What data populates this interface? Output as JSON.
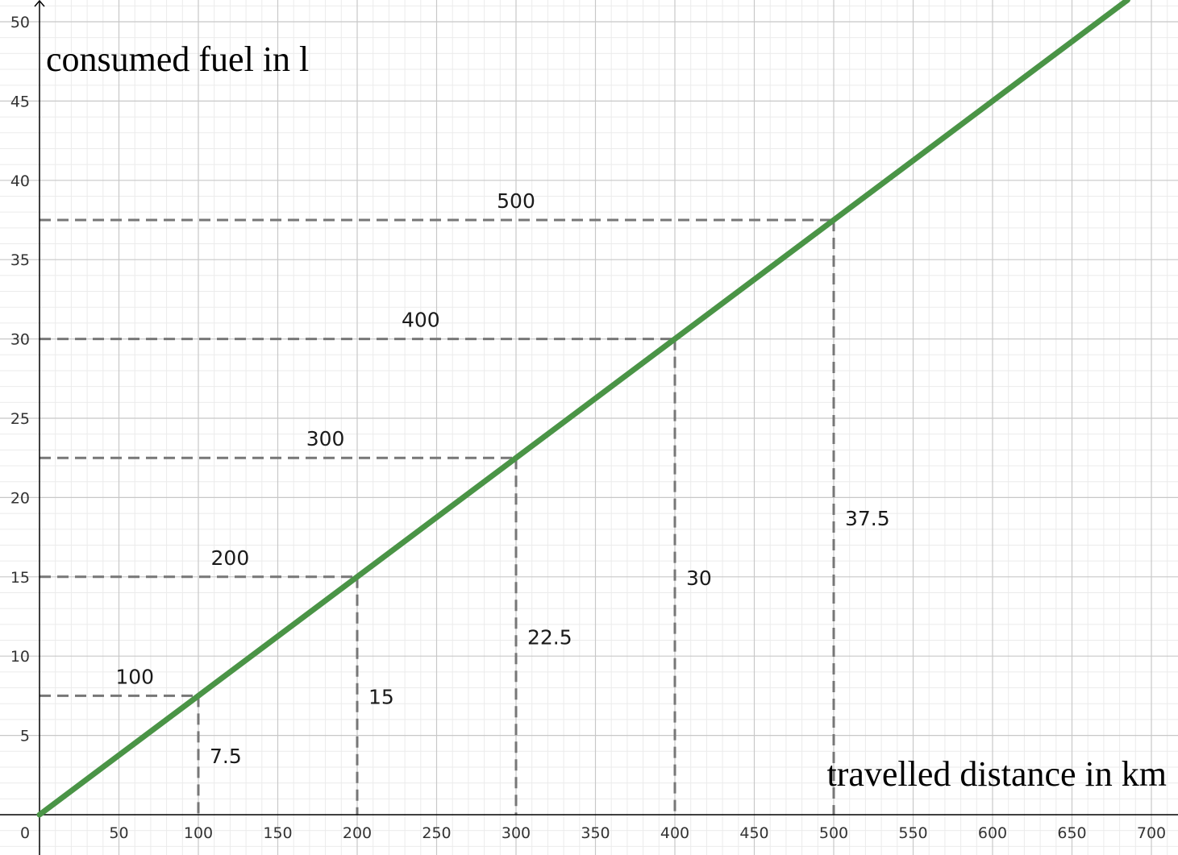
{
  "chart_data": {
    "type": "line",
    "xlabel": "travelled distance in km",
    "ylabel": "consumed fuel in l",
    "xlim": [
      0,
      718
    ],
    "ylim": [
      -2.4,
      51.5
    ],
    "x_ticks": [
      "0",
      "50",
      "100",
      "150",
      "200",
      "250",
      "300",
      "350",
      "400",
      "450",
      "500",
      "550",
      "600",
      "650",
      "700"
    ],
    "y_ticks": [
      "5",
      "10",
      "15",
      "20",
      "25",
      "30",
      "35",
      "40",
      "45",
      "50"
    ],
    "grid": true,
    "series": [
      {
        "color": "#4a9446",
        "x": [
          0,
          100,
          200,
          300,
          400,
          500,
          685
        ],
        "y": [
          0,
          7.5,
          15,
          22.5,
          30,
          37.5,
          51.375
        ]
      }
    ],
    "annotations": [
      {
        "x": 100,
        "y": 7.5,
        "x_label": "100",
        "y_label": "7.5"
      },
      {
        "x": 200,
        "y": 15,
        "x_label": "200",
        "y_label": "15"
      },
      {
        "x": 300,
        "y": 22.5,
        "x_label": "300",
        "y_label": "22.5"
      },
      {
        "x": 400,
        "y": 30,
        "x_label": "400",
        "y_label": "30"
      },
      {
        "x": 500,
        "y": 37.5,
        "x_label": "500",
        "y_label": "37.5"
      }
    ],
    "colors": {
      "line": "#4a9446",
      "guide": "#777777",
      "grid_major": "#c8c8c8",
      "grid_minor": "#ebebeb",
      "axis": "#000000"
    }
  }
}
